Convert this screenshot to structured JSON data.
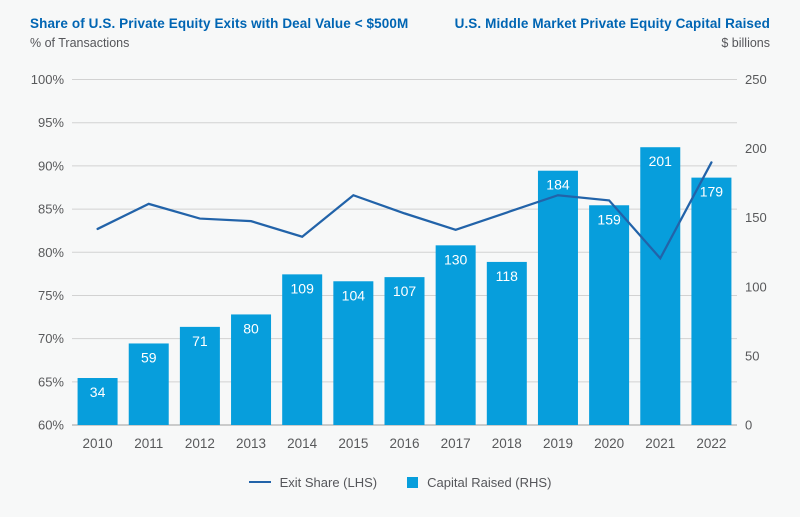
{
  "header": {
    "left": {
      "title": "Share of U.S. Private Equity Exits with Deal Value < $500M",
      "subtitle": "% of Transactions"
    },
    "right": {
      "title": "U.S. Middle Market Private Equity Capital Raised",
      "subtitle": "$ billions"
    }
  },
  "chart_data": {
    "type": "combo-bar-line",
    "categories": [
      "2010",
      "2011",
      "2012",
      "2013",
      "2014",
      "2015",
      "2016",
      "2017",
      "2018",
      "2019",
      "2020",
      "2021",
      "2022"
    ],
    "series": [
      {
        "name": "Exit Share (LHS)",
        "type": "line",
        "axis": "left",
        "color": "#2263a9",
        "values": [
          82.7,
          85.6,
          83.9,
          83.6,
          81.8,
          86.6,
          84.5,
          82.6,
          84.6,
          86.6,
          86.0,
          79.3,
          90.4
        ]
      },
      {
        "name": "Capital Raised (RHS)",
        "type": "bar",
        "axis": "right",
        "color": "#079edc",
        "values": [
          34,
          59,
          71,
          80,
          109,
          104,
          107,
          130,
          118,
          184,
          159,
          201,
          179
        ],
        "value_labels": true,
        "label_color": "#ffffff"
      }
    ],
    "left_axis": {
      "title": "% of Transactions",
      "min": 60,
      "max": 100,
      "step": 5,
      "tick_labels": [
        "100%",
        "95%",
        "90%",
        "85%",
        "80%",
        "75%",
        "70%",
        "65%",
        "60%"
      ]
    },
    "right_axis": {
      "title": "$ billions",
      "min": 0,
      "max": 250,
      "step": 50,
      "tick_labels": [
        "250",
        "200",
        "150",
        "100",
        "50",
        "0"
      ]
    },
    "grid": "horizontal",
    "legend_position": "bottom-center"
  },
  "legend": {
    "items": [
      {
        "label": "Exit Share (LHS)",
        "swatch": "line",
        "color": "#2263a9"
      },
      {
        "label": "Capital Raised (RHS)",
        "swatch": "square",
        "color": "#079edc"
      }
    ]
  },
  "colors": {
    "background": "#f7f8f8",
    "title_blue": "#0065b3",
    "axis_text": "#58595b",
    "subtitle_text": "#55565a",
    "gridline": "#d2d2d2",
    "baseline": "#9e9e9e",
    "bar": "#079edc",
    "line": "#2263a9"
  }
}
